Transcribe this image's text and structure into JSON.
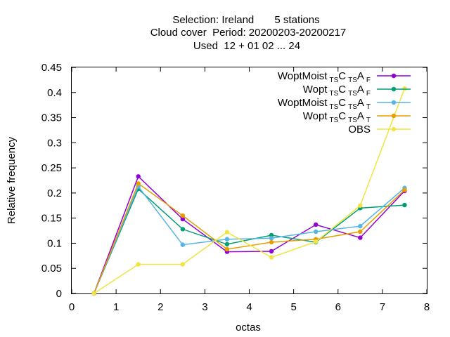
{
  "chart_data": {
    "type": "line",
    "title_lines": [
      "Selection: Ireland       5 stations",
      "Cloud cover  Period: 20200203-20200217",
      "Used  12 + 01 02 ... 24"
    ],
    "xlabel": "octas",
    "ylabel": "Relative frequency",
    "xlim": [
      0,
      8
    ],
    "ylim": [
      0,
      0.45
    ],
    "xticks": [
      0,
      1,
      2,
      3,
      4,
      5,
      6,
      7,
      8
    ],
    "yticks": [
      0,
      0.05,
      0.1,
      0.15,
      0.2,
      0.25,
      0.3,
      0.35,
      0.4,
      0.45
    ],
    "xtick_labels": [
      "0",
      "1",
      "2",
      "3",
      "4",
      "5",
      "6",
      "7",
      "8"
    ],
    "ytick_labels": [
      "0",
      "0.05",
      "0.1",
      "0.15",
      "0.2",
      "0.25",
      "0.3",
      "0.35",
      "0.4",
      "0.45"
    ],
    "grid": false,
    "legend_position": "top-right",
    "x": [
      0.5,
      1.5,
      2.5,
      3.5,
      4.5,
      5.5,
      6.5,
      7.5
    ],
    "series": [
      {
        "legend": {
          "base": "WoptMoist",
          "s1": "TS",
          "mid": "C",
          "s2": "TS",
          "mid2": "A",
          "s3": "F"
        },
        "color": "#9400d3",
        "values": [
          0.0,
          0.233,
          0.148,
          0.083,
          0.084,
          0.137,
          0.111,
          0.204
        ]
      },
      {
        "legend": {
          "base": "Wopt",
          "s1": "TS",
          "mid": "C",
          "s2": "TS",
          "mid2": "A",
          "s3": "F"
        },
        "color": "#009e73",
        "values": [
          0.0,
          0.208,
          0.128,
          0.098,
          0.116,
          0.102,
          0.17,
          0.176
        ]
      },
      {
        "legend": {
          "base": "WoptMoist",
          "s1": "TS",
          "mid": "C",
          "s2": "TS",
          "mid2": "A",
          "s3": "T"
        },
        "color": "#56b4e9",
        "values": [
          0.0,
          0.213,
          0.097,
          0.108,
          0.11,
          0.123,
          0.134,
          0.21
        ]
      },
      {
        "legend": {
          "base": "Wopt",
          "s1": "TS",
          "mid": "C",
          "s2": "TS",
          "mid2": "A",
          "s3": "T"
        },
        "color": "#e69f00",
        "values": [
          0.0,
          0.219,
          0.155,
          0.088,
          0.102,
          0.108,
          0.123,
          0.206
        ]
      },
      {
        "legend": {
          "base": "OBS"
        },
        "color": "#f0e442",
        "values": [
          0.0,
          0.058,
          0.058,
          0.122,
          0.072,
          0.103,
          0.175,
          0.408
        ]
      }
    ]
  }
}
